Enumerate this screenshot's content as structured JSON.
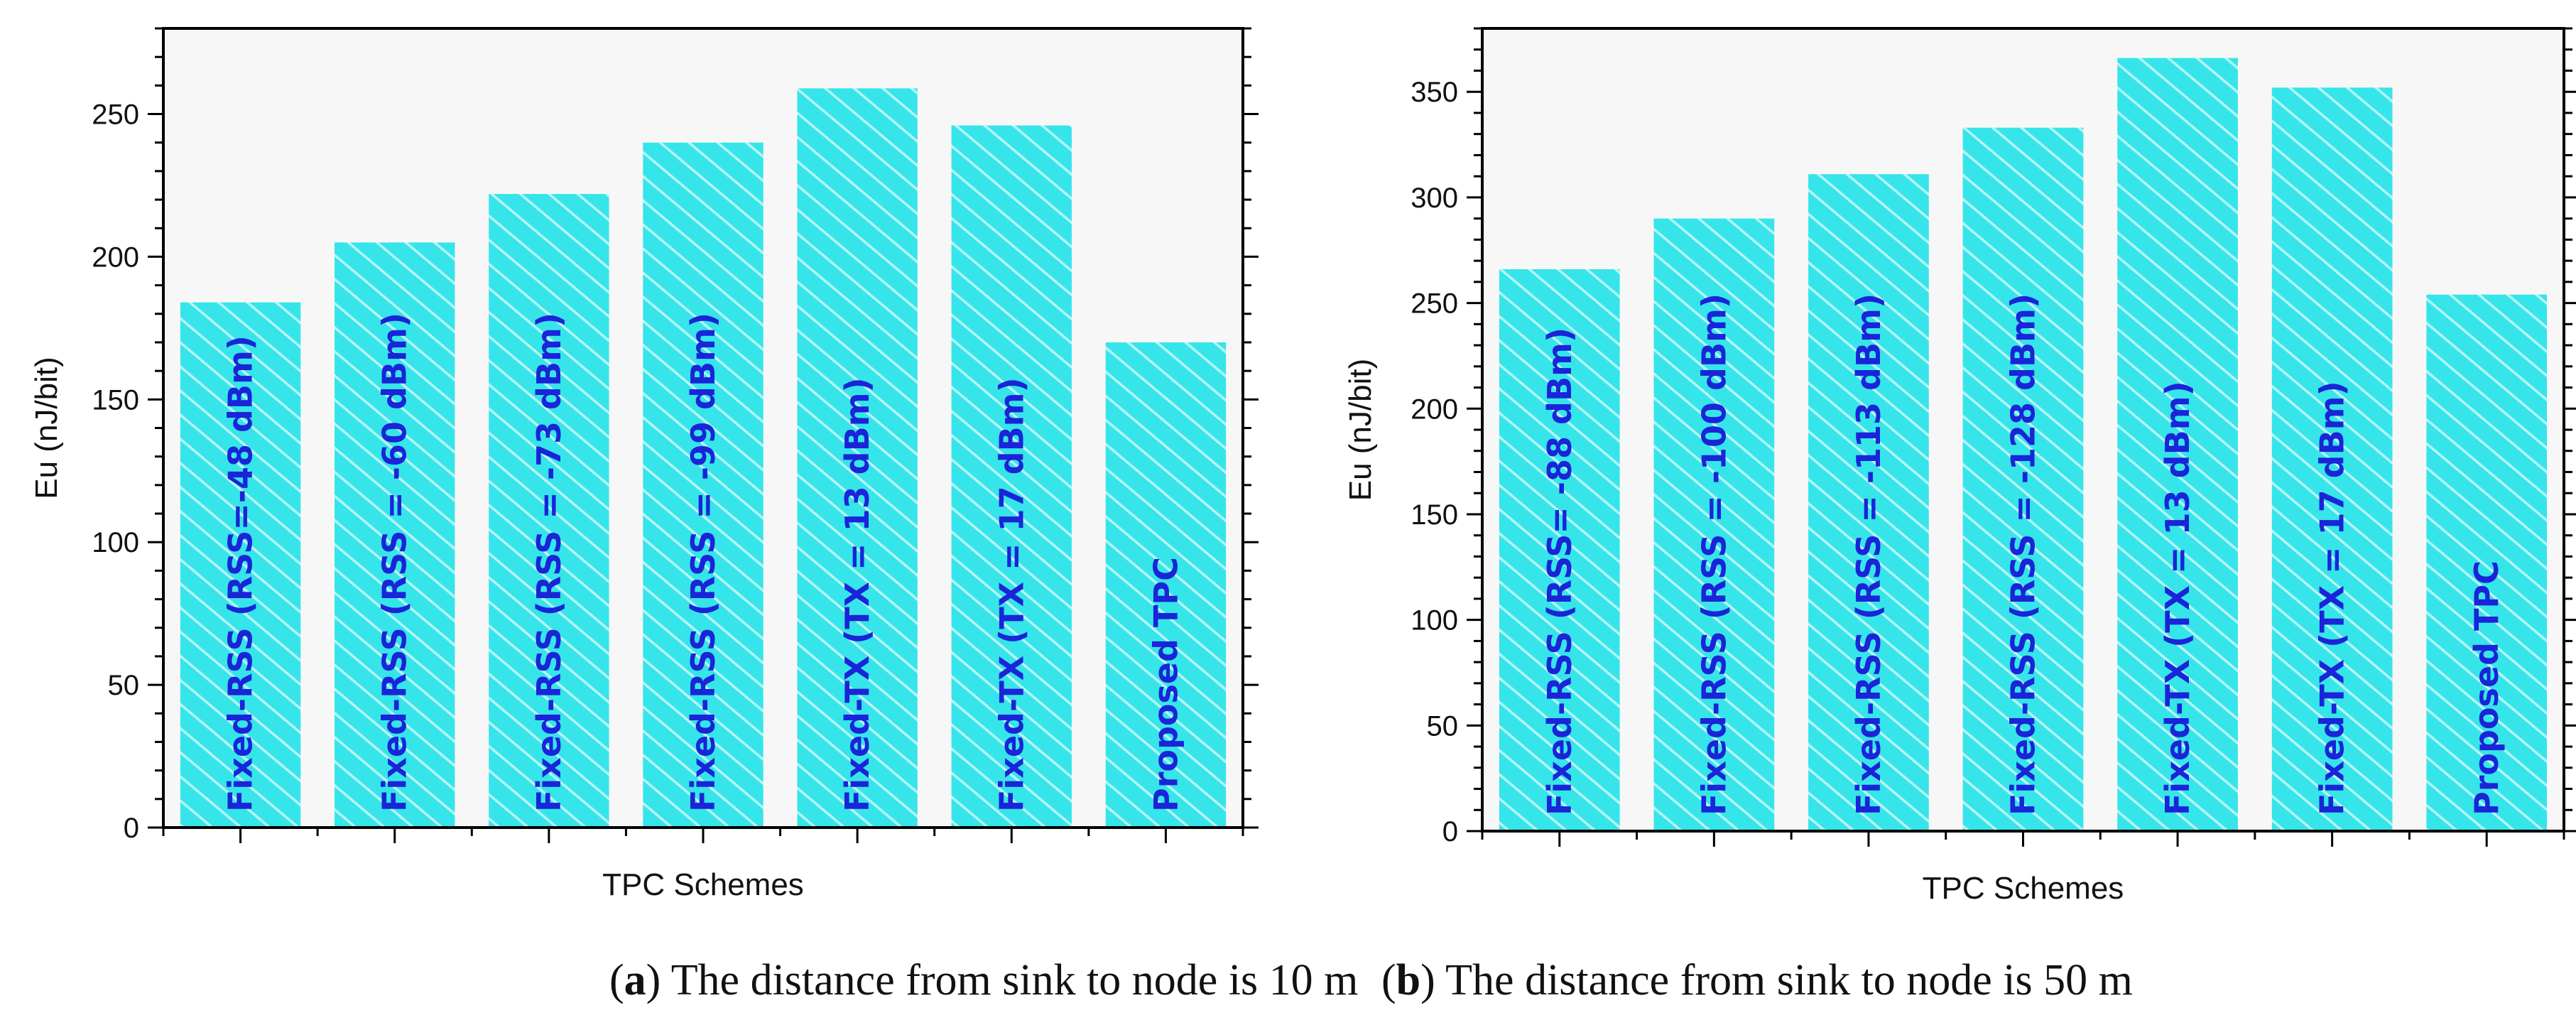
{
  "colors": {
    "bar_fill": "#36e5e9",
    "bar_hatch": "#b7f5f6",
    "bar_label": "#1a24d8",
    "axis": "#000000",
    "plot_bg": "#f7f7f7"
  },
  "charts": [
    {
      "id": "a",
      "caption_letter": "a",
      "caption_text": "The distance from sink to node is 10 m",
      "chart_type": "bar",
      "xlabel": "TPC Schemes",
      "ylabel": "Eu (nJ/bit)",
      "ylim": [
        0,
        280
      ],
      "yticks": [
        0,
        50,
        100,
        150,
        200,
        250
      ],
      "categories": [
        "Fixed-RSS (RSS=-48 dBm)",
        "Fixed-RSS (RSS = -60 dBm)",
        "Fixed-RSS (RSS = -73 dBm)",
        "Fixed-RSS (RSS = -99 dBm)",
        "Fixed-TX (TX = 13 dBm)",
        "Fixed-TX (TX = 17 dBm)",
        "Proposed TPC"
      ],
      "values": [
        184,
        205,
        222,
        240,
        259,
        246,
        170
      ]
    },
    {
      "id": "b",
      "caption_letter": "b",
      "caption_text": "The distance from sink to node is 50 m",
      "chart_type": "bar",
      "xlabel": "TPC Schemes",
      "ylabel": "Eu (nJ/bit)",
      "ylim": [
        0,
        380
      ],
      "yticks": [
        0,
        50,
        100,
        150,
        200,
        250,
        300,
        350
      ],
      "categories": [
        "Fixed-RSS (RSS= -88 dBm)",
        "Fixed-RSS (RSS = -100 dBm)",
        "Fixed-RSS (RSS = -113 dBm)",
        "Fixed-RSS (RSS = -128 dBm)",
        "Fixed-TX (TX = 13 dBm)",
        "Fixed-TX (TX = 17 dBm)",
        "Proposed TPC"
      ],
      "values": [
        266,
        290,
        311,
        333,
        366,
        352,
        254
      ]
    }
  ],
  "chart_data": [
    {
      "type": "bar",
      "title": "",
      "categories": [
        "Fixed-RSS (RSS=-48 dBm)",
        "Fixed-RSS (RSS = -60 dBm)",
        "Fixed-RSS (RSS = -73 dBm)",
        "Fixed-RSS (RSS = -99 dBm)",
        "Fixed-TX (TX = 13 dBm)",
        "Fixed-TX (TX = 17 dBm)",
        "Proposed TPC"
      ],
      "values": [
        184,
        205,
        222,
        240,
        259,
        246,
        170
      ],
      "xlabel": "TPC Schemes",
      "ylabel": "Eu (nJ/bit)",
      "ylim": [
        0,
        280
      ]
    },
    {
      "type": "bar",
      "title": "",
      "categories": [
        "Fixed-RSS (RSS= -88 dBm)",
        "Fixed-RSS (RSS = -100 dBm)",
        "Fixed-RSS (RSS = -113 dBm)",
        "Fixed-RSS (RSS = -128 dBm)",
        "Fixed-TX (TX = 13 dBm)",
        "Fixed-TX (TX = 17 dBm)",
        "Proposed TPC"
      ],
      "values": [
        266,
        290,
        311,
        333,
        366,
        352,
        254
      ],
      "xlabel": "TPC Schemes",
      "ylabel": "Eu (nJ/bit)",
      "ylim": [
        0,
        380
      ]
    }
  ]
}
